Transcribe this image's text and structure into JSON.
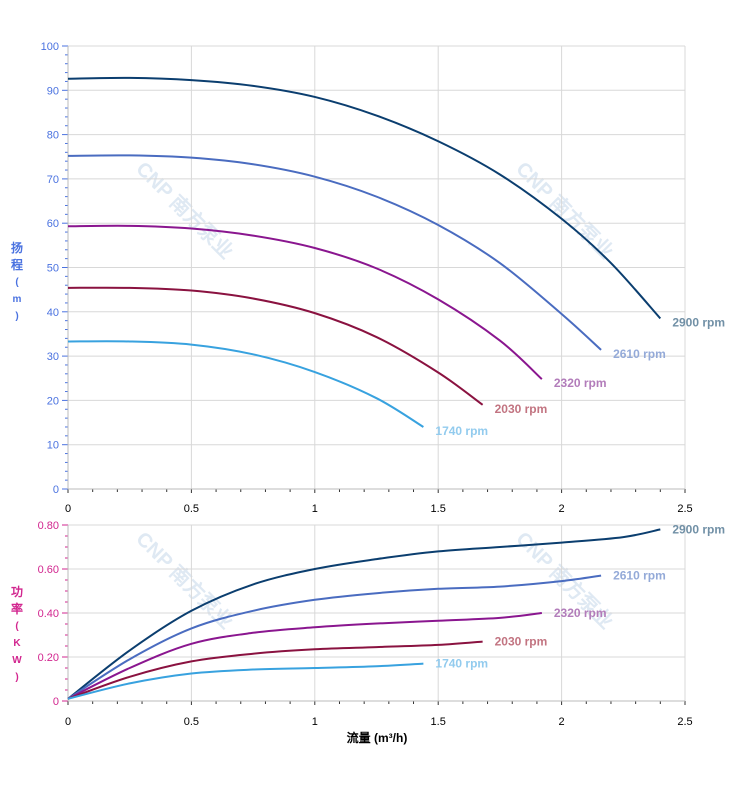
{
  "chart_data": [
    {
      "type": "line",
      "ylabel": "扬程 (m)",
      "xlim": [
        0,
        2.5
      ],
      "ylim": [
        0,
        100
      ],
      "xticks": [
        "0",
        "0.5",
        "1",
        "1.5",
        "2",
        "2.5"
      ],
      "yticks": [
        "0",
        "10",
        "20",
        "30",
        "40",
        "50",
        "60",
        "70",
        "80",
        "90",
        "100"
      ],
      "grid": true,
      "series": [
        {
          "name": "2900 rpm",
          "color": "#0b3e6f",
          "label_color": "#7190a6",
          "x": [
            0,
            0.25,
            0.5,
            0.75,
            1,
            1.25,
            1.5,
            1.75,
            2,
            2.2,
            2.4
          ],
          "y": [
            92.6,
            92.8,
            92.3,
            91,
            88.5,
            84.3,
            78.5,
            71,
            61,
            51,
            38.5
          ]
        },
        {
          "name": "2610 rpm",
          "color": "#4a6cc0",
          "label_color": "#94aad8",
          "x": [
            0,
            0.25,
            0.5,
            0.75,
            1,
            1.25,
            1.5,
            1.75,
            2,
            2.16
          ],
          "y": [
            75.2,
            75.3,
            74.8,
            73.3,
            70.5,
            66,
            59.6,
            51,
            39.5,
            31.4
          ]
        },
        {
          "name": "2320 rpm",
          "color": "#8a168f",
          "label_color": "#b27cba",
          "x": [
            0,
            0.25,
            0.5,
            0.75,
            1,
            1.25,
            1.5,
            1.75,
            1.92
          ],
          "y": [
            59.3,
            59.4,
            58.8,
            57.2,
            54.4,
            49.8,
            42.8,
            33.5,
            24.8
          ]
        },
        {
          "name": "2030 rpm",
          "color": "#8a1240",
          "label_color": "#c27481",
          "x": [
            0,
            0.25,
            0.5,
            0.75,
            1,
            1.25,
            1.5,
            1.68
          ],
          "y": [
            45.4,
            45.4,
            44.8,
            43,
            39.7,
            34.3,
            26.3,
            19
          ]
        },
        {
          "name": "1740 rpm",
          "color": "#38a2df",
          "label_color": "#92cbee",
          "x": [
            0,
            0.25,
            0.5,
            0.75,
            1,
            1.25,
            1.44
          ],
          "y": [
            33.3,
            33.3,
            32.6,
            30.4,
            26.4,
            20.5,
            14
          ]
        }
      ]
    },
    {
      "type": "line",
      "xlabel": "流量 (m³/h)",
      "ylabel": "功率 (KW)",
      "xlim": [
        0,
        2.5
      ],
      "ylim": [
        0,
        0.8
      ],
      "xticks": [
        "0",
        "0.5",
        "1",
        "1.5",
        "2",
        "2.5"
      ],
      "yticks": [
        "0",
        "0.20",
        "0.40",
        "0.60",
        "0.80"
      ],
      "grid": true,
      "series": [
        {
          "name": "2900 rpm",
          "color": "#0b3e6f",
          "label_color": "#7190a6",
          "x": [
            0,
            0.25,
            0.5,
            0.75,
            1,
            1.25,
            1.5,
            1.75,
            2,
            2.25,
            2.4
          ],
          "y": [
            0.01,
            0.23,
            0.41,
            0.53,
            0.6,
            0.645,
            0.68,
            0.7,
            0.72,
            0.745,
            0.78
          ]
        },
        {
          "name": "2610 rpm",
          "color": "#4a6cc0",
          "label_color": "#94aad8",
          "x": [
            0,
            0.25,
            0.5,
            0.75,
            1,
            1.25,
            1.5,
            1.75,
            2,
            2.16
          ],
          "y": [
            0.01,
            0.19,
            0.33,
            0.41,
            0.46,
            0.49,
            0.51,
            0.52,
            0.545,
            0.57
          ]
        },
        {
          "name": "2320 rpm",
          "color": "#8a168f",
          "label_color": "#b27cba",
          "x": [
            0,
            0.25,
            0.5,
            0.75,
            1,
            1.25,
            1.5,
            1.75,
            1.92
          ],
          "y": [
            0.01,
            0.15,
            0.26,
            0.31,
            0.335,
            0.352,
            0.365,
            0.378,
            0.4
          ]
        },
        {
          "name": "2030 rpm",
          "color": "#8a1240",
          "label_color": "#c27481",
          "x": [
            0,
            0.25,
            0.5,
            0.75,
            1,
            1.25,
            1.5,
            1.68
          ],
          "y": [
            0.01,
            0.11,
            0.18,
            0.215,
            0.235,
            0.245,
            0.255,
            0.27
          ]
        },
        {
          "name": "1740 rpm",
          "color": "#38a2df",
          "label_color": "#92cbee",
          "x": [
            0,
            0.25,
            0.5,
            0.75,
            1,
            1.25,
            1.44
          ],
          "y": [
            0.01,
            0.08,
            0.125,
            0.143,
            0.15,
            0.158,
            0.17
          ]
        }
      ]
    }
  ],
  "watermark": "CNP 南方泵业",
  "colors": {
    "head_axis": "#4a72e0",
    "power_axis": "#d2268f",
    "grid": "#d8d8d8"
  }
}
